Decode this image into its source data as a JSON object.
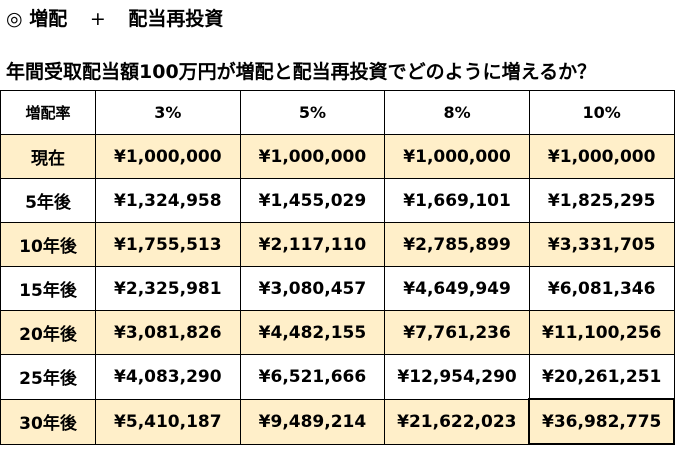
{
  "heading": {
    "bullet": "◎",
    "left": "増配",
    "plus": "+",
    "right": "配当再投資"
  },
  "question": "年間受取配当額100万円が増配と配当再投資でどのように増えるか？",
  "table": {
    "header_label": "増配率",
    "rates": [
      "3%",
      "5%",
      "8%",
      "10%"
    ],
    "rows": [
      {
        "label": "現在",
        "values": [
          "¥1,000,000",
          "¥1,000,000",
          "¥1,000,000",
          "¥1,000,000"
        ]
      },
      {
        "label": "5年後",
        "values": [
          "¥1,324,958",
          "¥1,455,029",
          "¥1,669,101",
          "¥1,825,295"
        ]
      },
      {
        "label": "10年後",
        "values": [
          "¥1,755,513",
          "¥2,117,110",
          "¥2,785,899",
          "¥3,331,705"
        ]
      },
      {
        "label": "15年後",
        "values": [
          "¥2,325,981",
          "¥3,080,457",
          "¥4,649,949",
          "¥6,081,346"
        ]
      },
      {
        "label": "20年後",
        "values": [
          "¥3,081,826",
          "¥4,482,155",
          "¥7,761,236",
          "¥11,100,256"
        ]
      },
      {
        "label": "25年後",
        "values": [
          "¥4,083,290",
          "¥6,521,666",
          "¥12,954,290",
          "¥20,261,251"
        ]
      },
      {
        "label": "30年後",
        "values": [
          "¥5,410,187",
          "¥9,489,214",
          "¥21,622,023",
          "¥36,982,775"
        ]
      }
    ]
  },
  "colors": {
    "row_highlight": "#ffefc9",
    "max_cell": "#ff66d1"
  }
}
